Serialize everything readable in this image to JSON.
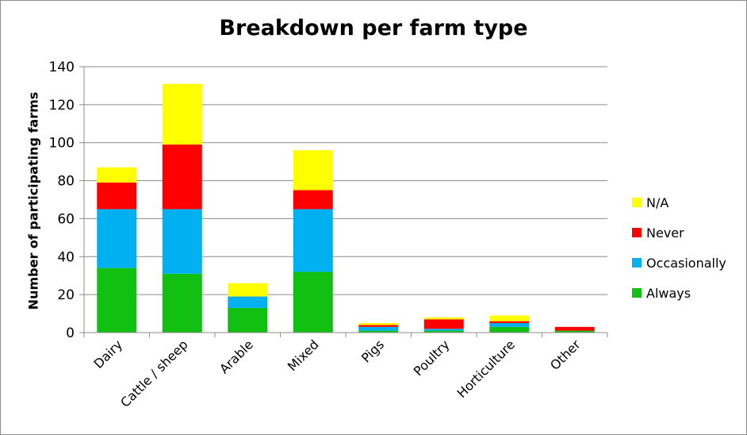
{
  "chart_data": {
    "type": "bar",
    "stacked": true,
    "title": "Breakdown per farm type",
    "xlabel": "",
    "ylabel": "Number of participating farms",
    "ylim": [
      0,
      140
    ],
    "yticks": [
      "0",
      "20",
      "40",
      "60",
      "80",
      "100",
      "120",
      "140"
    ],
    "grid": true,
    "legend_position": "right",
    "categories": [
      "Dairy",
      "Cattle / sheep",
      "Arable",
      "Mixed",
      "Pigs",
      "Poultry",
      "Horticulture",
      "Other"
    ],
    "series": [
      {
        "name": "Always",
        "color": "#12c012",
        "values": [
          34,
          31,
          13,
          32,
          1,
          1,
          3,
          1
        ]
      },
      {
        "name": "Occasionally",
        "color": "#00b0f0",
        "values": [
          31,
          34,
          6,
          33,
          2,
          1,
          2,
          0
        ]
      },
      {
        "name": "Never",
        "color": "#ff0000",
        "values": [
          14,
          34,
          0,
          10,
          1,
          5,
          1,
          2
        ]
      },
      {
        "name": "N/A",
        "color": "#ffff00",
        "values": [
          8,
          32,
          7,
          21,
          1,
          1,
          3,
          0
        ]
      }
    ]
  }
}
